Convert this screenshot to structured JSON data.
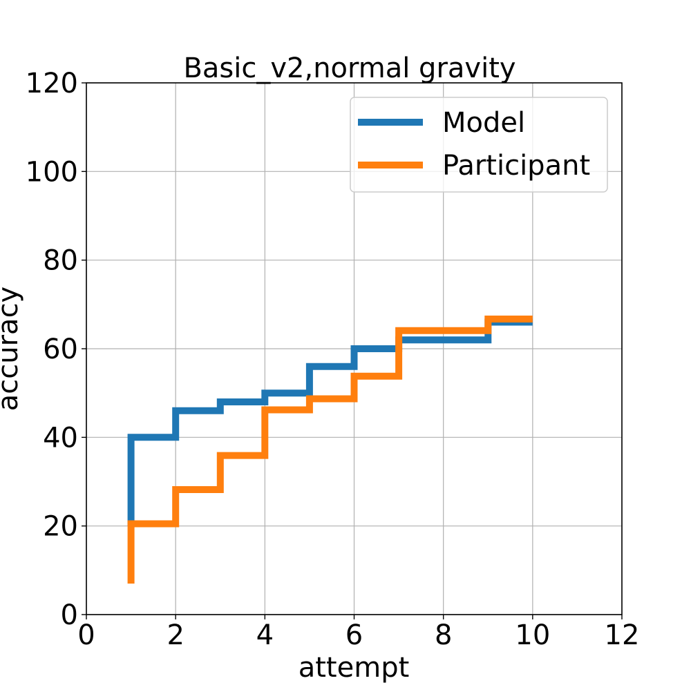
{
  "chart_data": {
    "type": "line",
    "step": "post",
    "title": "Basic_v2,normal gravity",
    "xlabel": "attempt",
    "ylabel": "accuracy",
    "xlim": [
      0,
      12
    ],
    "ylim": [
      0,
      120
    ],
    "xticks": [
      0,
      2,
      4,
      6,
      8,
      10,
      12
    ],
    "yticks": [
      0,
      20,
      40,
      60,
      80,
      100,
      120
    ],
    "grid": true,
    "legend_position": "upper right",
    "series": [
      {
        "name": "Model",
        "color": "#1f77b4",
        "x": [
          1,
          1,
          2,
          3,
          4,
          5,
          6,
          7,
          8,
          9,
          10
        ],
        "y": [
          20,
          40,
          46,
          48,
          50,
          56,
          60,
          62,
          62,
          66,
          66
        ]
      },
      {
        "name": "Participant",
        "color": "#ff7f0e",
        "x": [
          1,
          1,
          2,
          3,
          4,
          5,
          6,
          7,
          8,
          9,
          10
        ],
        "y": [
          7,
          20.5,
          28.2,
          35.9,
          46.2,
          48.7,
          53.8,
          64.1,
          64.1,
          66.7,
          66.7
        ]
      }
    ]
  }
}
